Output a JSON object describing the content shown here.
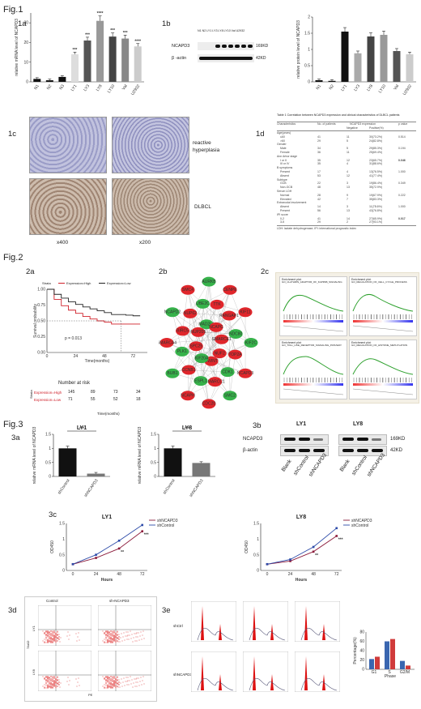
{
  "fig1": {
    "title": "Fig.1",
    "panel_1a": "1a",
    "panel_1b": "1b",
    "panel_1c": "1c",
    "panel_1d": "1d",
    "a_ylabel": "relative mRNA level of NCAPD3",
    "b_ylabel": "relative protein level of NCAPD3",
    "blot_header": "N1  N2   LY1  LY3  LY8  LY10  Val  U2932",
    "blot_row1": "NCAPD3",
    "blot_row2": "β -actin",
    "blot_kd1": "169KD",
    "blot_kd2": "42KD",
    "label_reactive": "reactive hyperplasia",
    "label_dlbcl": "DLBCL",
    "mag_400": "x400",
    "mag_200": "x200",
    "table_title": "Table 1 Correlation between NCAPD3 expression and clinical characteristics of DLBCL patients",
    "table_cols": [
      "Characteristics",
      "No. of patients",
      "NCAPD3 expression",
      "p value"
    ],
    "table_sub": [
      "Negative",
      "Positive(%)"
    ],
    "table_rows": [
      [
        "Age(years)",
        "",
        "",
        "",
        ""
      ],
      [
        "≤60",
        "41",
        "11",
        "30(73.2%)",
        "0.514"
      ],
      [
        ">60",
        "29",
        "5",
        "24(82.8%)",
        ""
      ],
      [
        "Gender",
        "",
        "",
        "",
        ""
      ],
      [
        "Male",
        "34",
        "5",
        "29(85.3%)",
        "0.194"
      ],
      [
        "Female",
        "36",
        "11",
        "25(69.4%)",
        ""
      ],
      [
        "Ann Arbor stage",
        "",
        "",
        "",
        ""
      ],
      [
        "I or II",
        "35",
        "12",
        "23(65.7%)",
        "0.046"
      ],
      [
        "III or IV",
        "35",
        "4",
        "31(88.6%)",
        ""
      ],
      [
        "B symptoms",
        "",
        "",
        "",
        ""
      ],
      [
        "Present",
        "17",
        "4",
        "13(76.5%)",
        "1.000"
      ],
      [
        "Absent",
        "53",
        "12",
        "41(77.4%)",
        ""
      ],
      [
        "Subtype",
        "",
        "",
        "",
        ""
      ],
      [
        "GCB",
        "22",
        "3",
        "19(86.4%)",
        "0.349"
      ],
      [
        "Non-GCB",
        "48",
        "13",
        "35(72.9%)",
        ""
      ],
      [
        "Serum LDH",
        "",
        "",
        "",
        ""
      ],
      [
        "Normal",
        "28",
        "9",
        "19(67.9%)",
        "0.222"
      ],
      [
        "Elevated",
        "42",
        "7",
        "35(83.3%)",
        ""
      ],
      [
        "Extranodal involvement",
        "",
        "",
        "",
        ""
      ],
      [
        "Absent",
        "14",
        "3",
        "11(78.6%)",
        "1.000"
      ],
      [
        "Present",
        "56",
        "13",
        "43(76.8%)",
        ""
      ],
      [
        "IPI score",
        "",
        "",
        "",
        ""
      ],
      [
        "0-2",
        "41",
        "14",
        "27(65.9%)",
        "0.017"
      ],
      [
        "3-5",
        "29",
        "2",
        "27(93.1%)",
        ""
      ]
    ],
    "table_note": "LDH: lactate dehydrogenase; IPI: international prognostic index"
  },
  "fig2": {
    "title": "Fig.2",
    "panel_2a": "2a",
    "panel_2b": "2b",
    "panel_2c": "2c",
    "legend_strata": "Strata",
    "legend_high": "Expression=High",
    "legend_low": "Expression=Low",
    "ylabel": "Survival probability",
    "xlabel": "Time(months)",
    "pvalue": "p = 0.013",
    "risk_title": "Number at risk",
    "risk_strata": "Strata",
    "risk_high_label": "Expression=High",
    "risk_low_label": "Expression=Low",
    "risk_high": [
      "145",
      "89",
      "73",
      "34"
    ],
    "risk_low": [
      "71",
      "55",
      "52",
      "18"
    ],
    "network_nodes": [
      "KIF2C",
      "NCAPD3",
      "SMC2",
      "CDC20",
      "NCAPH",
      "BUB1",
      "SMARCA4",
      "NCAPD2",
      "SMC4",
      "AURKB",
      "CENPE",
      "KIF11",
      "TOP2A",
      "CDK1",
      "SMARCC1",
      "ESPL1",
      "CCNB1",
      "PLK1",
      "BIRC5",
      "NUP62",
      "UBE2C",
      "TTK",
      "RANGAP1",
      "NDC80",
      "NUF2",
      "ZWINT",
      "KIF20A",
      "SPC25",
      "NUP205",
      "MAD2L1",
      "NCAPG",
      "SMARCE1"
    ],
    "gsea_titles": [
      "GO_CLATHRIN_ADAPTOR_OF_KAPPAB_SIGNALING",
      "GO_REGULATION_OF_CELL_CYCLE_PROCESS",
      "GO_TOLL_LIKE_RECEPTOR_SIGNALING_PATHWAY",
      "GO_REGULATION_OF_HISTONE_METHYLATION"
    ],
    "gsea_header": "Enrichment plot:"
  },
  "fig3": {
    "title": "Fig.3",
    "panel_3a": "3a",
    "panel_3b": "3b",
    "panel_3c": "3c",
    "panel_3d": "3d",
    "panel_3e": "3e",
    "ly1": "LY1",
    "ly8": "LY8",
    "a_ylabel": "relative mRNA level of NCAPD3",
    "a_sig": "***",
    "b_row1": "NCAPD3",
    "b_row2": "β-actin",
    "b_kd1": "169KD",
    "b_kd2": "42KD",
    "b_lanes": [
      "Blank",
      "shControl",
      "shNCAPD3"
    ],
    "c_ylabel": "OD450",
    "c_xlabel": "Hours",
    "c_legend_sh": "shNCAPD3",
    "c_legend_ctrl": "shControl",
    "d_control": "Control",
    "d_sh": "sh-NCAPD3",
    "d_ylabel": "7AAD",
    "d_xlabel": "PE",
    "d_ly1": "LY1",
    "d_ly8": "LY8",
    "e_shctrl": "shCtrl",
    "e_shncapd3": "shNCAPD3",
    "e_ylabel": "Percentage(%)",
    "e_xlabel": "Phase",
    "e_phases": [
      "G1",
      "S",
      "G2/M"
    ]
  },
  "colors": {
    "high": "#d0202a",
    "low": "#222222",
    "bar_black": "#111111",
    "bar_gray": "#777777",
    "node_red": "#e0262b",
    "node_green": "#36b24a",
    "sh_color": "#8b1a3a",
    "ctrl_color": "#2c4aa8",
    "ihc_bg_blue": "#b6b7d4",
    "ihc_bg_brown": "#c7b3a0"
  },
  "chart_data": [
    {
      "type": "bar",
      "ylabel": "relative mRNA level of NCAPD3",
      "categories": [
        "N1",
        "N2",
        "N3",
        "LY1",
        "LY3",
        "LY8",
        "LY10",
        "Val",
        "U2932"
      ],
      "values": [
        1.5,
        0.8,
        2.5,
        14,
        21,
        31,
        23,
        22,
        18
      ],
      "significance": [
        "",
        "",
        "",
        "***",
        "***",
        "****",
        "***",
        "***",
        "****"
      ],
      "ylim": [
        0,
        35
      ]
    },
    {
      "type": "bar",
      "ylabel": "relative protein level of NCAPD3",
      "categories": [
        "N1",
        "N2",
        "LY1",
        "LY3",
        "LY8",
        "LY10",
        "Val",
        "U2932"
      ],
      "values": [
        0.05,
        0.03,
        1.55,
        0.88,
        1.4,
        1.45,
        0.95,
        0.85
      ],
      "ylim": [
        0,
        2
      ]
    },
    {
      "type": "line",
      "ylabel": "Survival probability",
      "xlabel": "Time(months)",
      "x_ticks": [
        0,
        24,
        48,
        72
      ],
      "y_ticks": [
        0,
        0.25,
        0.5,
        0.75,
        1.0
      ],
      "series": [
        {
          "name": "Expression=High",
          "x": [
            0,
            6,
            12,
            18,
            24,
            30,
            36,
            42,
            48,
            54,
            60,
            66,
            72,
            78
          ],
          "y": [
            1.0,
            0.84,
            0.74,
            0.67,
            0.62,
            0.57,
            0.53,
            0.5,
            0.48,
            0.45,
            0.45,
            0.45,
            0.45,
            0.45
          ]
        },
        {
          "name": "Expression=Low",
          "x": [
            0,
            6,
            12,
            18,
            24,
            30,
            36,
            42,
            48,
            54,
            60,
            66,
            72,
            78
          ],
          "y": [
            1.0,
            0.92,
            0.86,
            0.8,
            0.76,
            0.72,
            0.69,
            0.66,
            0.63,
            0.6,
            0.6,
            0.59,
            0.58,
            0.58
          ]
        }
      ]
    },
    {
      "type": "bar",
      "title": "LY1",
      "ylabel": "relative mRNA level of NCAPD3",
      "categories": [
        "shControl",
        "shNCAPD3"
      ],
      "values": [
        1.0,
        0.1
      ],
      "ylim": [
        0,
        1.5
      ]
    },
    {
      "type": "bar",
      "title": "LY8",
      "ylabel": "relative mRNA level of NCAPD3",
      "categories": [
        "shControl",
        "shNCAPD3"
      ],
      "values": [
        1.0,
        0.48
      ],
      "ylim": [
        0,
        1.5
      ]
    },
    {
      "type": "line",
      "title": "LY1",
      "xlabel": "Hours",
      "ylabel": "OD450",
      "categories": [
        "0",
        "24",
        "48",
        "72"
      ],
      "series": [
        {
          "name": "shNCAPD3",
          "values": [
            0.2,
            0.4,
            0.7,
            1.25
          ]
        },
        {
          "name": "shControl",
          "values": [
            0.2,
            0.5,
            0.95,
            1.45
          ]
        }
      ],
      "ylim": [
        0,
        1.5
      ]
    },
    {
      "type": "line",
      "title": "LY8",
      "xlabel": "Hours",
      "ylabel": "OD450",
      "categories": [
        "0",
        "24",
        "48",
        "72"
      ],
      "series": [
        {
          "name": "shNCAPD3",
          "values": [
            0.2,
            0.3,
            0.6,
            1.1
          ]
        },
        {
          "name": "shControl",
          "values": [
            0.2,
            0.35,
            0.75,
            1.35
          ]
        }
      ],
      "ylim": [
        0,
        1.5
      ]
    },
    {
      "type": "bar",
      "xlabel": "Phase",
      "ylabel": "Percentage(%)",
      "categories": [
        "G1",
        "S",
        "G2/M"
      ],
      "series": [
        {
          "name": "shCtrl",
          "values": [
            22,
            60,
            18
          ]
        },
        {
          "name": "shNCAPD3",
          "values": [
            27,
            65,
            8
          ]
        }
      ],
      "ylim": [
        0,
        80
      ]
    }
  ]
}
